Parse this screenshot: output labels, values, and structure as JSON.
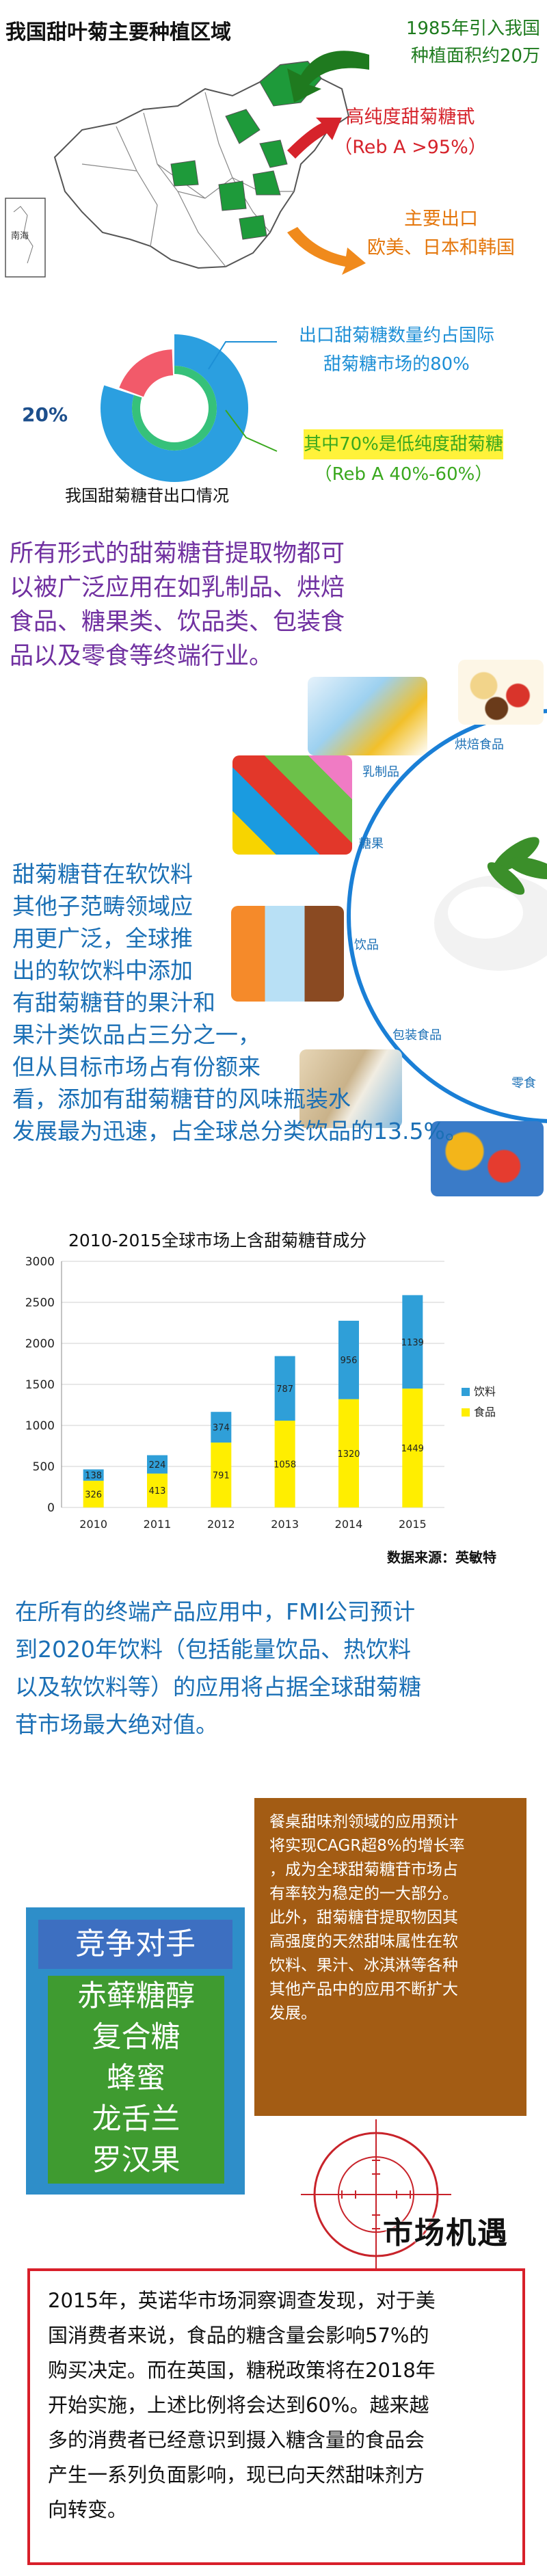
{
  "map_section": {
    "title": "我国甜叶菊主要种植区域",
    "green_callout": [
      "1985年引入我国",
      "种植面积约20万"
    ],
    "red_callout": [
      "高纯度甜菊糖甙",
      "（Reb A >95%）"
    ],
    "orange_callout": [
      "主要出口",
      "欧美、日本和韩国"
    ],
    "inset_label": "南海"
  },
  "export_section": {
    "blue_text": [
      "出口甜菊糖数量约占国际",
      "甜菊糖市场的80%"
    ],
    "pct_label": "20%",
    "green_text": [
      "其中70%是低纯度甜菊糖",
      "（Reb A 40%-60%）"
    ],
    "caption": "我国甜菊糖苷出口情况",
    "donut": {
      "share_main": 80,
      "share_minor": 20
    }
  },
  "para1": [
    "所有形式的甜菊糖苷提取物都可",
    "以被广泛应用在如乳制品、烘焙",
    "食品、糖果类、饮品类、包装食",
    "品以及零食等终端行业。"
  ],
  "applications": [
    "乳制品",
    "烘焙食品",
    "糖果",
    "饮品",
    "包装食品",
    "零食"
  ],
  "para2": [
    "甜菊糖苷在软饮料",
    "其他子范畴领域应",
    "用更广泛，全球推",
    "出的软饮料中添加",
    "有甜菊糖苷的果汁和",
    "果汁类饮品占三分之一，",
    "但从目标市场占有份额来",
    "看，添加有甜菊糖苷的风味瓶装水",
    "发展最为迅速，占全球总分类饮品的13.5%。"
  ],
  "chart_data": {
    "type": "bar",
    "stacked": true,
    "title": "2010-2015全球市场上含甜菊糖苷成分",
    "categories": [
      "2010",
      "2011",
      "2012",
      "2013",
      "2014",
      "2015"
    ],
    "series": [
      {
        "name": "食品",
        "color": "#ffee00",
        "values": [
          326,
          413,
          791,
          1058,
          1320,
          1449
        ]
      },
      {
        "name": "饮料",
        "color": "#2f9fd8",
        "values": [
          138,
          224,
          374,
          787,
          956,
          1139
        ]
      }
    ],
    "ylim": [
      0,
      3000
    ],
    "yticks": [
      "0",
      "500",
      "1000",
      "1500",
      "2000",
      "2500",
      "3000"
    ],
    "legend": "right",
    "source": "数据来源：英敏特"
  },
  "para3": [
    "在所有的终端产品应用中，FMI公司预计",
    "到2020年饮料（包括能量饮品、热饮料",
    "以及软饮料等）的应用将占据全球甜菊糖",
    "苷市场最大绝对值。"
  ],
  "tabletop_text": [
    "餐桌甜味剂领域的应用预计",
    "将实现CAGR超8%的增长率",
    "，成为全球甜菊糖苷市场占",
    "有率较为稳定的一大部分。",
    "此外，甜菊糖苷提取物因其",
    "高强度的天然甜味属性在软",
    "饮料、果汁、冰淇淋等各种",
    "其他产品中的应用不断扩大",
    "发展。"
  ],
  "competitors": {
    "title": "竞争对手",
    "items": [
      "赤藓糖醇",
      "复合糖",
      "蜂蜜",
      "龙舌兰",
      "罗汉果"
    ]
  },
  "market_title": "市场机遇",
  "market_text": [
    "2015年，英诺华市场洞察调查发现，对于美",
    "国消费者来说，食品的糖含量会影响57%的",
    "购买决定。而在英国，糖税政策将在2018年",
    "开始实施，上述比例将会达到60%。越来越",
    "多的消费者已经意识到摄入糖含量的食品会",
    "产生一系列负面影响，现已向天然甜味剂方",
    "向转变。"
  ],
  "colors": {
    "purple": "#7030a0",
    "blue": "#1a6fb5",
    "green": "#3f9b30",
    "brown": "#a35c14",
    "red": "#d8202a"
  }
}
